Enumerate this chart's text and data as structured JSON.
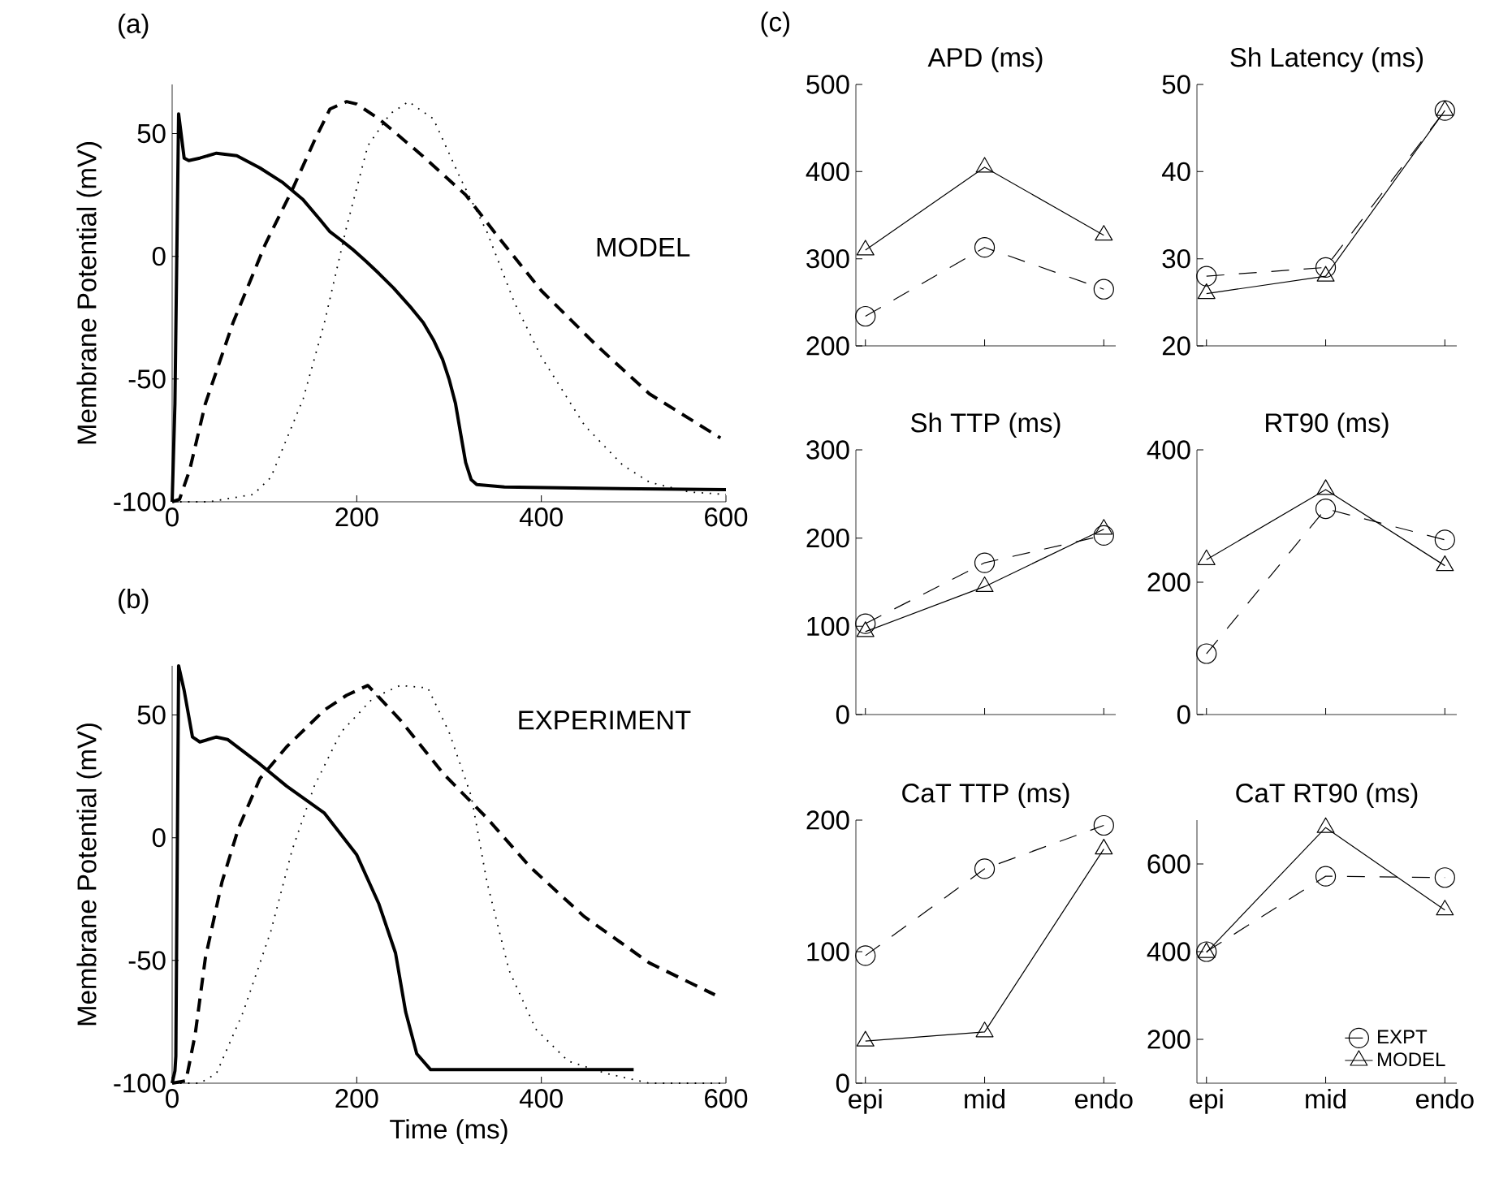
{
  "chart_data": [
    {
      "type": "line",
      "ylabel": "Membrane Potential (mV)",
      "annotations": [
        "(a)",
        "MODEL"
      ],
      "xlim": [
        0,
        600
      ],
      "ylim": [
        -100,
        70
      ],
      "xticks": [
        0,
        200,
        400,
        600
      ],
      "yticks": [
        -100,
        -50,
        0,
        50
      ],
      "series": [
        {
          "color": "#000000",
          "line_style": "solid",
          "x": [
            0,
            3,
            7,
            13,
            18,
            30,
            48,
            70,
            95,
            120,
            142,
            160,
            171,
            185,
            195,
            210,
            224,
            240,
            259,
            272,
            283,
            293,
            300,
            307,
            312,
            318,
            324,
            330,
            360,
            450,
            600
          ],
          "values": [
            -100,
            -60,
            58,
            40,
            39,
            40,
            42,
            41,
            36,
            30,
            23,
            15,
            10,
            6,
            3,
            -2,
            -7,
            -13,
            -21,
            -27,
            -34,
            -42,
            -50,
            -60,
            -71,
            -84,
            -91,
            -93,
            -94,
            -94.5,
            -95
          ]
        },
        {
          "color": "#000000",
          "line_style": "dashed",
          "x": [
            0,
            8,
            19,
            36,
            66,
            101,
            130,
            154,
            171,
            189,
            200,
            224,
            271,
            318,
            353,
            400,
            459,
            517,
            594
          ],
          "values": [
            -100,
            -99,
            -87,
            -60,
            -27,
            5,
            27,
            47,
            60,
            63,
            62,
            56,
            41,
            25,
            8,
            -14,
            -36,
            -56,
            -74
          ]
        },
        {
          "color": "#000000",
          "line_style": "dotted",
          "x": [
            0,
            40,
            88,
            107,
            142,
            165,
            189,
            212,
            236,
            256,
            283,
            312,
            341,
            371,
            400,
            447,
            488,
            517,
            560,
            600
          ],
          "values": [
            -100,
            -100,
            -97,
            -90,
            -58,
            -27,
            12,
            45,
            58,
            63,
            56,
            32,
            10,
            -19,
            -41,
            -69,
            -85,
            -92,
            -96,
            -97
          ]
        }
      ]
    },
    {
      "type": "line",
      "xlabel": "Time (ms)",
      "ylabel": "Membrane Potential (mV)",
      "annotations": [
        "(b)",
        "EXPERIMENT"
      ],
      "xlim": [
        0,
        600
      ],
      "ylim": [
        -100,
        70
      ],
      "xticks": [
        0,
        200,
        400,
        600
      ],
      "yticks": [
        -100,
        -50,
        0,
        50
      ],
      "series": [
        {
          "color": "#000000",
          "line_style": "solid",
          "x": [
            0,
            3,
            4,
            7,
            13,
            22,
            30,
            48,
            60,
            95,
            124,
            165,
            200,
            224,
            242,
            253,
            265,
            280,
            500
          ],
          "values": [
            -100,
            -95,
            -89,
            70,
            60,
            41,
            39,
            41,
            40,
            30,
            21,
            10,
            -7,
            -27,
            -47,
            -71,
            -88,
            -94.5,
            -94.5
          ]
        },
        {
          "color": "#000000",
          "line_style": "dashed",
          "x": [
            0,
            15,
            25,
            36,
            54,
            72,
            95,
            124,
            165,
            189,
            212,
            247,
            294,
            341,
            388,
            446,
            517,
            588
          ],
          "values": [
            -100,
            -99,
            -80,
            -49,
            -18,
            4,
            24,
            37,
            52,
            58,
            62,
            48,
            26,
            8,
            -12,
            -32,
            -51,
            -64
          ]
        },
        {
          "color": "#000000",
          "line_style": "dotted",
          "x": [
            0,
            30,
            48,
            77,
            107,
            130,
            154,
            183,
            218,
            247,
            277,
            300,
            324,
            341,
            365,
            394,
            429,
            470,
            517,
            600
          ],
          "values": [
            -100,
            -100,
            -96,
            -71,
            -38,
            -5,
            21,
            43,
            57,
            62,
            61,
            43,
            17,
            -18,
            -54,
            -78,
            -91,
            -96,
            -100,
            -100
          ]
        }
      ]
    },
    {
      "type": "line",
      "title": "APD (ms)",
      "annotations": [
        "(c)"
      ],
      "categories": [
        null,
        null,
        null
      ],
      "ylim": [
        200,
        500
      ],
      "yticks": [
        200,
        300,
        400,
        500
      ],
      "tick_labels": "y",
      "series": [
        {
          "color": "#000000",
          "marker": "circle",
          "line_style": "dashed",
          "values": [
            234,
            313,
            265
          ]
        },
        {
          "color": "#000000",
          "marker": "triangle",
          "line_style": "solid",
          "values": [
            310,
            405,
            327
          ]
        }
      ]
    },
    {
      "type": "line",
      "title": "Sh Latency (ms)",
      "categories": [
        null,
        null,
        null
      ],
      "ylim": [
        20,
        50
      ],
      "yticks": [
        20,
        30,
        40,
        50
      ],
      "tick_labels": "y",
      "series": [
        {
          "color": "#000000",
          "marker": "circle",
          "line_style": "dashed",
          "values": [
            28,
            29,
            47
          ]
        },
        {
          "color": "#000000",
          "marker": "triangle",
          "line_style": "solid",
          "values": [
            26,
            28,
            47
          ]
        }
      ]
    },
    {
      "type": "line",
      "title": "Sh TTP (ms)",
      "categories": [
        null,
        null,
        null
      ],
      "ylim": [
        0,
        300
      ],
      "yticks": [
        0,
        100,
        200,
        300
      ],
      "tick_labels": "y",
      "series": [
        {
          "color": "#000000",
          "marker": "circle",
          "line_style": "dashed",
          "values": [
            103,
            172,
            203
          ]
        },
        {
          "color": "#000000",
          "marker": "triangle",
          "line_style": "solid",
          "values": [
            94,
            145,
            210
          ]
        }
      ]
    },
    {
      "type": "line",
      "title": "RT90 (ms)",
      "categories": [
        null,
        null,
        null
      ],
      "ylim": [
        0,
        400
      ],
      "yticks": [
        0,
        200,
        400
      ],
      "tick_labels": "y",
      "series": [
        {
          "color": "#000000",
          "marker": "circle",
          "line_style": "dashed",
          "values": [
            92,
            311,
            264
          ]
        },
        {
          "color": "#000000",
          "marker": "triangle",
          "line_style": "solid",
          "values": [
            234,
            340,
            225
          ]
        }
      ]
    },
    {
      "type": "line",
      "title": "CaT TTP (ms)",
      "categories": [
        "epi",
        "mid",
        "endo"
      ],
      "ylim": [
        0,
        200
      ],
      "yticks": [
        0,
        100,
        200
      ],
      "series": [
        {
          "color": "#000000",
          "marker": "circle",
          "line_style": "dashed",
          "values": [
            97,
            163,
            196
          ]
        },
        {
          "color": "#000000",
          "marker": "triangle",
          "line_style": "solid",
          "values": [
            32,
            39,
            178
          ]
        }
      ]
    },
    {
      "type": "line",
      "title": "CaT RT90 (ms)",
      "categories": [
        "epi",
        "mid",
        "endo"
      ],
      "ylim": [
        100,
        700
      ],
      "yticks": [
        200,
        400,
        600
      ],
      "legend": "bottom right",
      "series": [
        {
          "name": "EXPT",
          "color": "#000000",
          "marker": "circle",
          "line_style": "dashed",
          "values": [
            400,
            572,
            569
          ]
        },
        {
          "name": "MODEL",
          "color": "#000000",
          "marker": "triangle",
          "line_style": "solid",
          "values": [
            398,
            683,
            495
          ]
        }
      ]
    }
  ]
}
